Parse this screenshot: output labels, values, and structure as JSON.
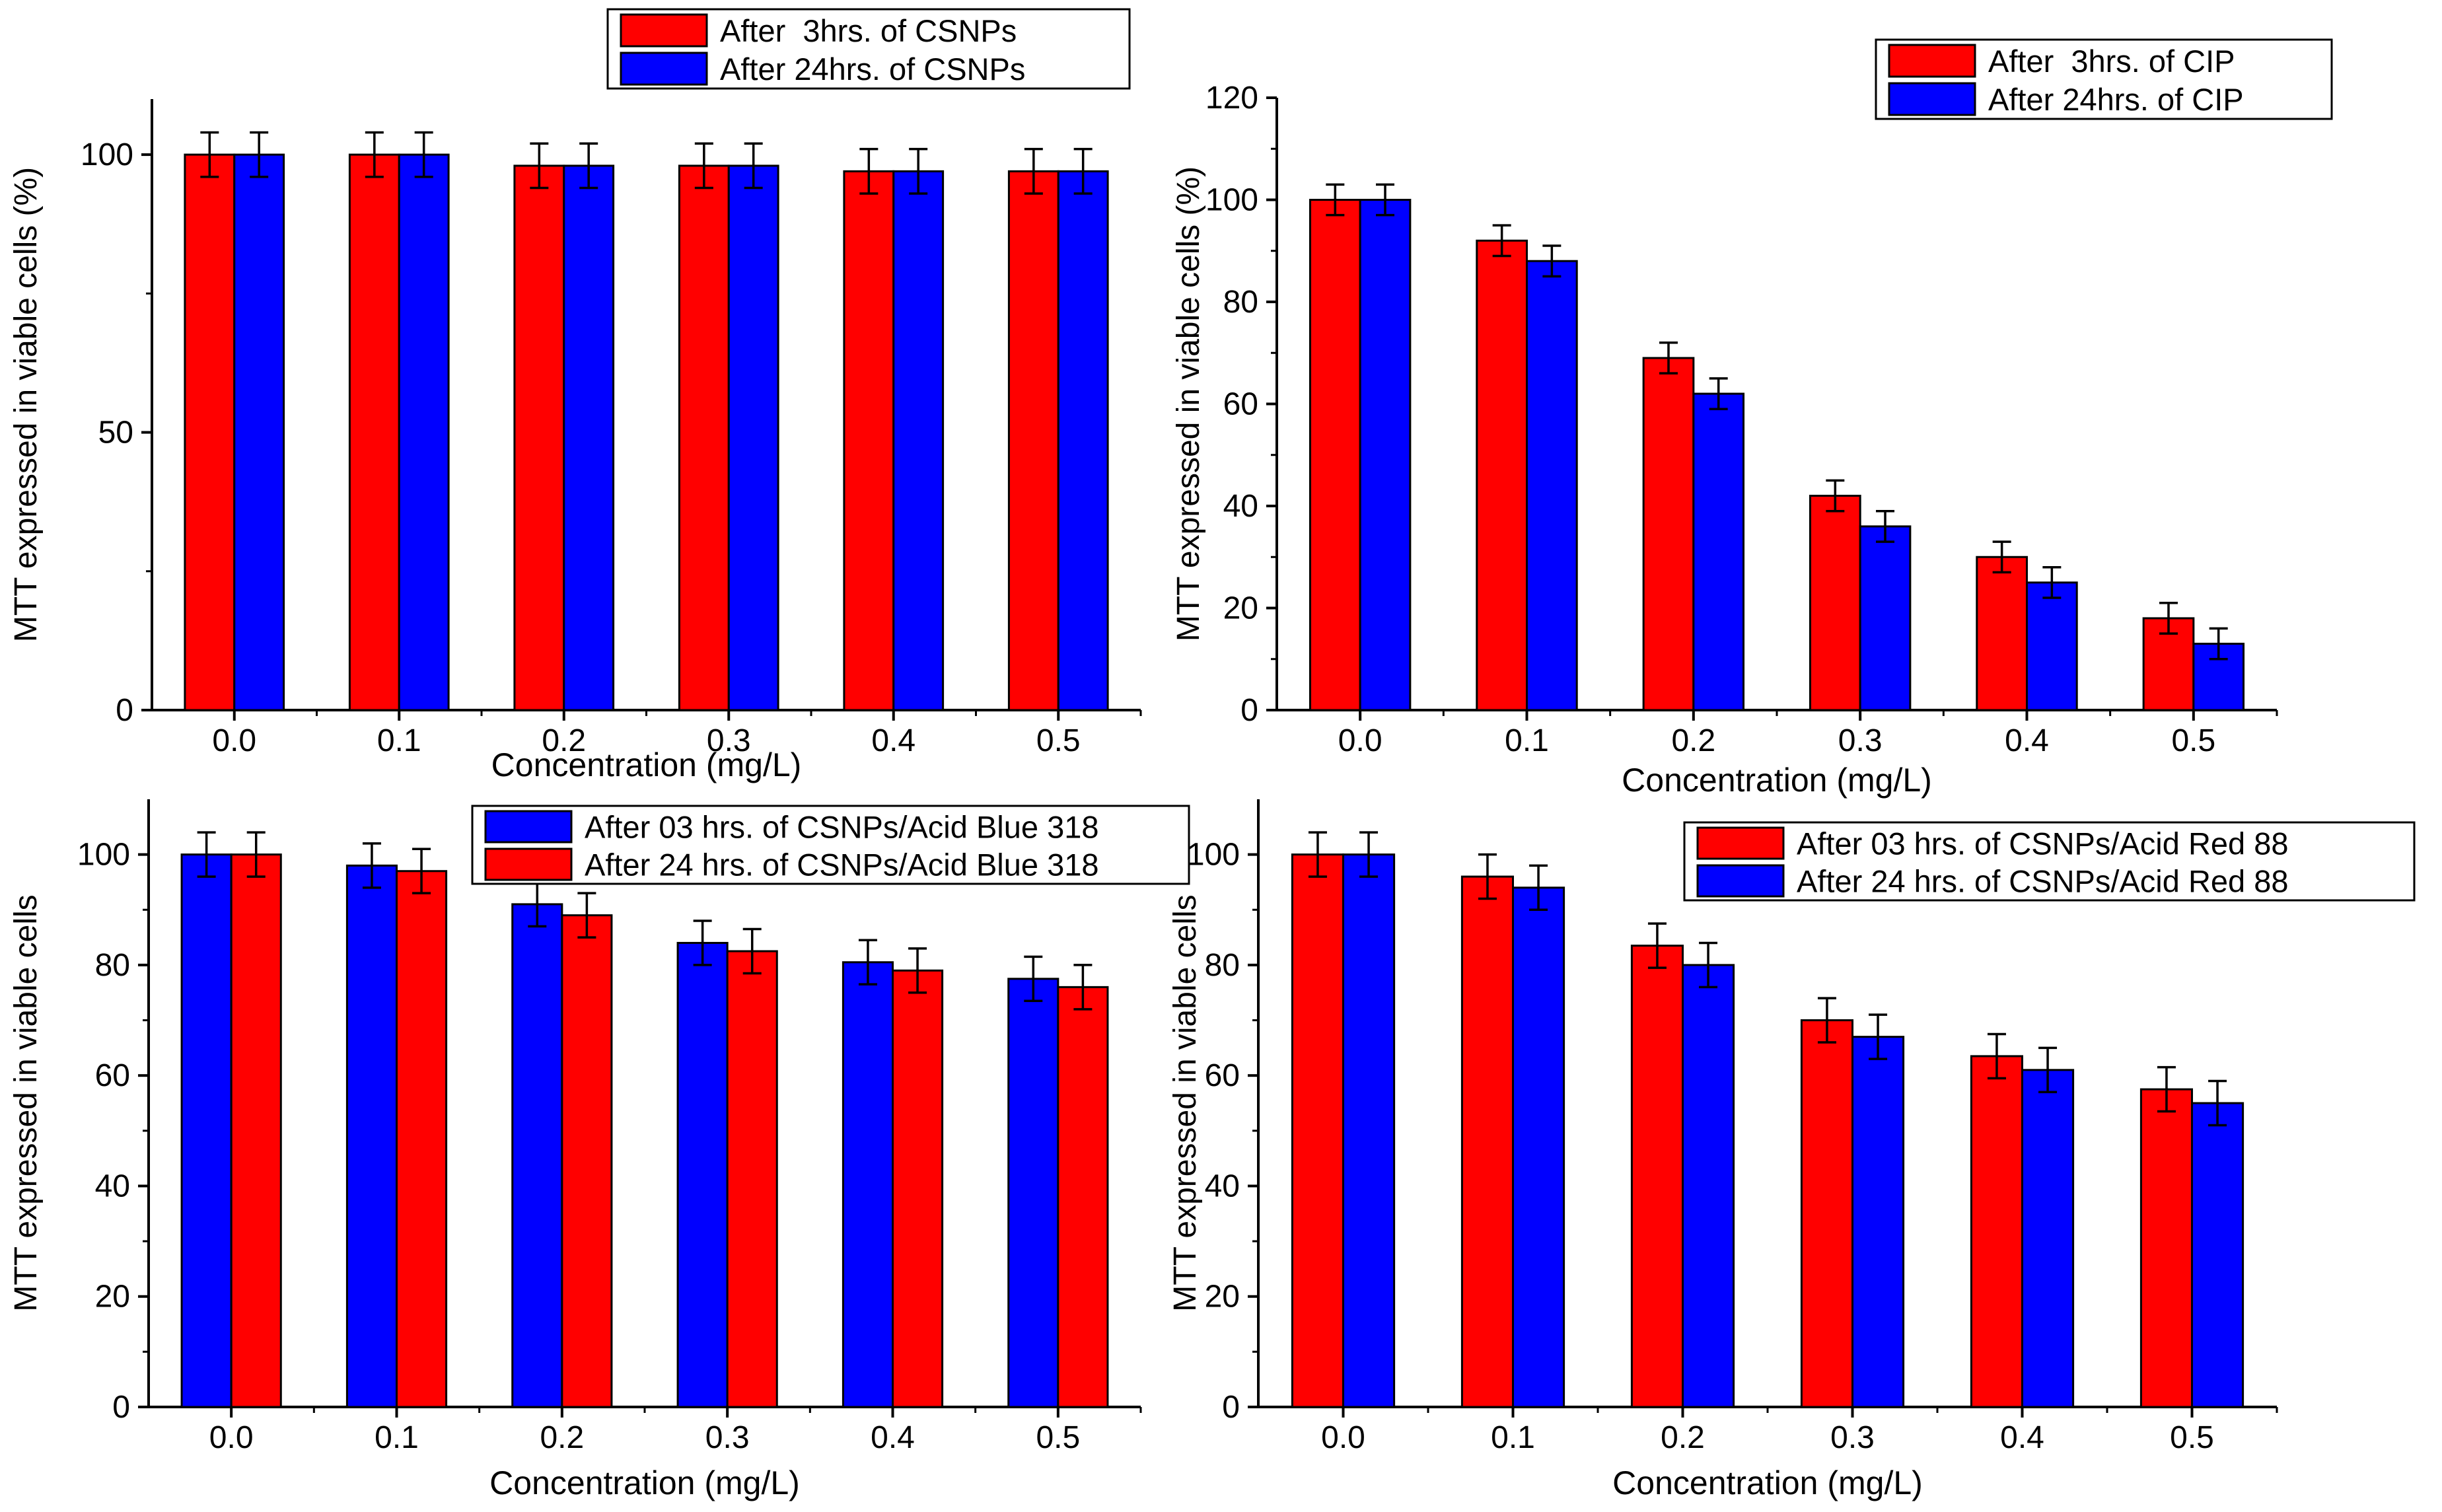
{
  "chart_data": [
    {
      "type": "bar",
      "panel": "top-left",
      "categories": [
        "0.0",
        "0.1",
        "0.2",
        "0.3",
        "0.4",
        "0.5"
      ],
      "series": [
        {
          "name": "After  3hrs. of CSNPs",
          "color": "#ff0000",
          "values": [
            100,
            100,
            98,
            98,
            97,
            97
          ],
          "errors": [
            4,
            4,
            4,
            4,
            4,
            4
          ]
        },
        {
          "name": "After 24hrs. of CSNPs",
          "color": "#0000ff",
          "values": [
            100,
            100,
            98,
            98,
            97,
            97
          ],
          "errors": [
            4,
            4,
            4,
            4,
            4,
            4
          ]
        }
      ],
      "ylim": [
        0,
        110
      ],
      "yticks": [
        "0",
        "50",
        "100"
      ],
      "ytick_values": [
        0,
        50,
        100
      ],
      "xlabel": "Concentration (mg/L)",
      "ylabel": "MTT expressed in viable cells (%)",
      "legend_position": "top-center",
      "title": ""
    },
    {
      "type": "bar",
      "panel": "top-right",
      "categories": [
        "0.0",
        "0.1",
        "0.2",
        "0.3",
        "0.4",
        "0.5"
      ],
      "series": [
        {
          "name": "After  3hrs. of CIP",
          "color": "#ff0000",
          "values": [
            100,
            92,
            69,
            42,
            30,
            18
          ],
          "errors": [
            3,
            3,
            3,
            3,
            3,
            3
          ]
        },
        {
          "name": "After 24hrs. of CIP",
          "color": "#0000ff",
          "values": [
            100,
            88,
            62,
            36,
            25,
            13
          ],
          "errors": [
            3,
            3,
            3,
            3,
            3,
            3
          ]
        }
      ],
      "ylim": [
        0,
        120
      ],
      "yticks": [
        "0",
        "20",
        "40",
        "60",
        "80",
        "100",
        "120"
      ],
      "ytick_values": [
        0,
        20,
        40,
        60,
        80,
        100,
        120
      ],
      "xlabel": "Concentration (mg/L)",
      "ylabel": "MTT expressed in viable cells (%)",
      "legend_position": "top-right",
      "title": ""
    },
    {
      "type": "bar",
      "panel": "bottom-left",
      "categories": [
        "0.0",
        "0.1",
        "0.2",
        "0.3",
        "0.4",
        "0.5"
      ],
      "series": [
        {
          "name": "After 03 hrs. of CSNPs/Acid Blue 318",
          "color": "#0000ff",
          "values": [
            100,
            98,
            91,
            84,
            80.5,
            77.5
          ],
          "errors": [
            4,
            4,
            4,
            4,
            4,
            4
          ]
        },
        {
          "name": "After 24 hrs. of CSNPs/Acid Blue 318",
          "color": "#ff0000",
          "values": [
            100,
            97,
            89,
            82.5,
            79,
            76
          ],
          "errors": [
            4,
            4,
            4,
            4,
            4,
            4
          ]
        }
      ],
      "ylim": [
        0,
        110
      ],
      "yticks": [
        "0",
        "20",
        "40",
        "60",
        "80",
        "100"
      ],
      "ytick_values": [
        0,
        20,
        40,
        60,
        80,
        100
      ],
      "xlabel": "Concentration (mg/L)",
      "ylabel": "MTT expressed in viable cells",
      "legend_position": "top-right",
      "title": ""
    },
    {
      "type": "bar",
      "panel": "bottom-right",
      "categories": [
        "0.0",
        "0.1",
        "0.2",
        "0.3",
        "0.4",
        "0.5"
      ],
      "series": [
        {
          "name": "After 03 hrs. of CSNPs/Acid Red 88",
          "color": "#ff0000",
          "values": [
            100,
            96,
            83.5,
            70,
            63.5,
            57.5
          ],
          "errors": [
            4,
            4,
            4,
            4,
            4,
            4
          ]
        },
        {
          "name": "After 24 hrs. of CSNPs/Acid Red 88",
          "color": "#0000ff",
          "values": [
            100,
            94,
            80,
            67,
            61,
            55
          ],
          "errors": [
            4,
            4,
            4,
            4,
            4,
            4
          ]
        }
      ],
      "ylim": [
        0,
        110
      ],
      "yticks": [
        "0",
        "20",
        "40",
        "60",
        "80",
        "100"
      ],
      "ytick_values": [
        0,
        20,
        40,
        60,
        80,
        100
      ],
      "xlabel": "Concentration (mg/L)",
      "ylabel": "MTT expressed in viable cells",
      "legend_position": "top-right",
      "title": ""
    }
  ]
}
